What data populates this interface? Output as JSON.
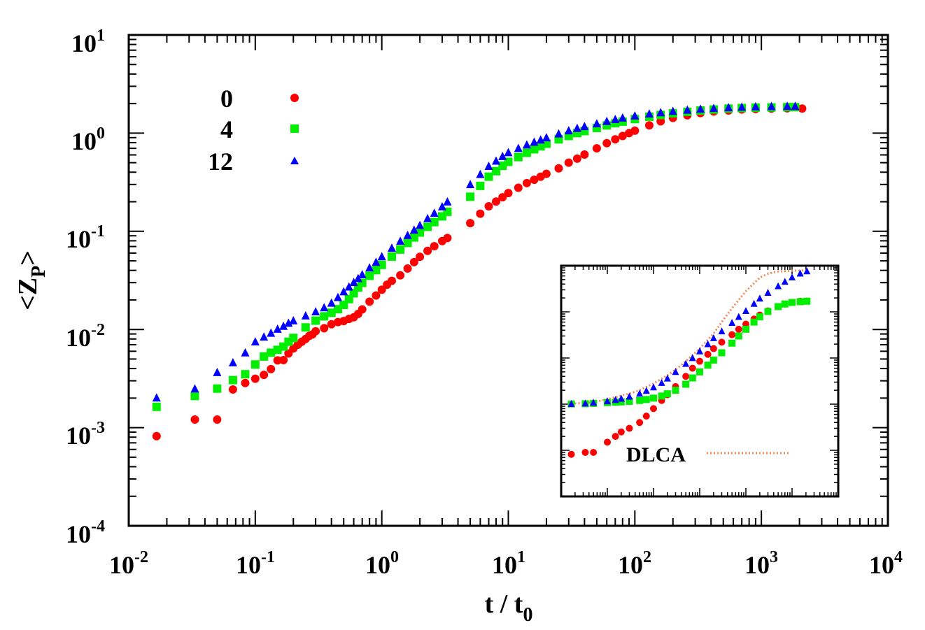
{
  "chart_data": [
    {
      "type": "scatter",
      "name": "main",
      "xscale": "log",
      "yscale": "log",
      "xlim": [
        0.01,
        10000
      ],
      "ylim": [
        0.0001,
        10
      ],
      "xlabel": {
        "base": "t / t",
        "sub": "0"
      },
      "ylabel": {
        "pre": "<Z",
        "sub": "P",
        "post": ">"
      },
      "x_ticks": [
        {
          "base": "10",
          "exp": "-2"
        },
        {
          "base": "10",
          "exp": "-1"
        },
        {
          "base": "10",
          "exp": "0"
        },
        {
          "base": "10",
          "exp": "1"
        },
        {
          "base": "10",
          "exp": "2"
        },
        {
          "base": "10",
          "exp": "3"
        },
        {
          "base": "10",
          "exp": "4"
        }
      ],
      "y_ticks": [
        {
          "base": "10",
          "exp": "-4"
        },
        {
          "base": "10",
          "exp": "-3"
        },
        {
          "base": "10",
          "exp": "-2"
        },
        {
          "base": "10",
          "exp": "-1"
        },
        {
          "base": "10",
          "exp": "0"
        },
        {
          "base": "10",
          "exp": "1"
        }
      ],
      "legend_position": "top-left",
      "series": [
        {
          "name": "0",
          "marker": "circle",
          "color": "#ff0000",
          "x": [
            0.0166,
            0.0333,
            0.05,
            0.0666,
            0.0833,
            0.1,
            0.117,
            0.133,
            0.15,
            0.167,
            0.183,
            0.2,
            0.217,
            0.233,
            0.25,
            0.267,
            0.283,
            0.3,
            0.35,
            0.4,
            0.45,
            0.5,
            0.55,
            0.6,
            0.65,
            0.7,
            0.8,
            0.9,
            1.0,
            1.1,
            1.2,
            1.4,
            1.6,
            1.8,
            2.0,
            2.3,
            2.6,
            3.0,
            3.3,
            5.0,
            6.0,
            7.0,
            8.0,
            9.0,
            10.0,
            12,
            14,
            16,
            18,
            20,
            25,
            30,
            35,
            40,
            50,
            60,
            70,
            80,
            90,
            100,
            130,
            160,
            200,
            260,
            330,
            420,
            550,
            700,
            900,
            1200,
            1600,
            2100
          ],
          "y": [
            0.00082,
            0.00121,
            0.00121,
            0.00245,
            0.00285,
            0.00315,
            0.00345,
            0.00395,
            0.00485,
            0.00488,
            0.0057,
            0.0064,
            0.007,
            0.0075,
            0.008,
            0.0086,
            0.0089,
            0.0096,
            0.0103,
            0.0113,
            0.0119,
            0.0122,
            0.0128,
            0.0133,
            0.0144,
            0.016,
            0.0192,
            0.0222,
            0.0254,
            0.0286,
            0.0313,
            0.0356,
            0.0418,
            0.0485,
            0.055,
            0.0632,
            0.0705,
            0.0795,
            0.0855,
            0.121,
            0.151,
            0.18,
            0.201,
            0.222,
            0.245,
            0.278,
            0.31,
            0.335,
            0.36,
            0.385,
            0.438,
            0.5,
            0.55,
            0.605,
            0.7,
            0.79,
            0.865,
            0.935,
            1.0,
            1.06,
            1.2,
            1.32,
            1.43,
            1.52,
            1.6,
            1.66,
            1.7,
            1.74,
            1.76,
            1.78,
            1.79,
            1.78
          ]
        },
        {
          "name": "4",
          "marker": "square",
          "color": "#00ee00",
          "x": [
            0.0166,
            0.0333,
            0.05,
            0.0666,
            0.0833,
            0.1,
            0.117,
            0.133,
            0.15,
            0.167,
            0.183,
            0.2,
            0.25,
            0.3,
            0.35,
            0.4,
            0.45,
            0.5,
            0.55,
            0.6,
            0.65,
            0.7,
            0.8,
            0.9,
            1.0,
            1.2,
            1.4,
            1.6,
            1.8,
            2.0,
            2.3,
            2.6,
            3.0,
            3.3,
            5.0,
            6.0,
            7.0,
            8.0,
            9.0,
            10.0,
            12,
            14,
            16,
            18,
            20,
            25,
            30,
            35,
            40,
            50,
            60,
            70,
            80,
            100,
            130,
            160,
            200,
            260,
            330,
            420,
            550,
            700,
            900,
            1200,
            1600,
            1850
          ],
          "y": [
            0.00163,
            0.0021,
            0.0025,
            0.00305,
            0.0035,
            0.0044,
            0.0053,
            0.0058,
            0.0062,
            0.0067,
            0.0075,
            0.0082,
            0.0105,
            0.0123,
            0.0136,
            0.0148,
            0.0161,
            0.0178,
            0.0204,
            0.0234,
            0.0268,
            0.0298,
            0.0352,
            0.0402,
            0.0455,
            0.0553,
            0.0652,
            0.0762,
            0.0865,
            0.0972,
            0.111,
            0.124,
            0.142,
            0.158,
            0.225,
            0.29,
            0.36,
            0.41,
            0.465,
            0.51,
            0.57,
            0.63,
            0.685,
            0.735,
            0.78,
            0.865,
            0.935,
            1.0,
            1.05,
            1.13,
            1.2,
            1.26,
            1.31,
            1.39,
            1.47,
            1.53,
            1.59,
            1.65,
            1.7,
            1.74,
            1.78,
            1.8,
            1.82,
            1.83,
            1.84,
            1.84
          ]
        },
        {
          "name": "12",
          "marker": "triangle",
          "color": "#0000ff",
          "x": [
            0.0166,
            0.0333,
            0.05,
            0.0666,
            0.0833,
            0.1,
            0.117,
            0.133,
            0.15,
            0.167,
            0.183,
            0.2,
            0.25,
            0.3,
            0.35,
            0.4,
            0.45,
            0.5,
            0.55,
            0.6,
            0.65,
            0.7,
            0.8,
            0.9,
            1.0,
            1.2,
            1.4,
            1.6,
            1.8,
            2.0,
            2.3,
            2.6,
            3.0,
            3.3,
            5.0,
            6.0,
            7.0,
            8.0,
            9.0,
            10.0,
            12,
            14,
            16,
            18,
            20,
            25,
            30,
            35,
            40,
            50,
            60,
            70,
            80,
            100,
            130,
            160,
            200,
            260,
            330,
            420,
            550,
            700,
            900,
            1200,
            1600,
            1850
          ],
          "y": [
            0.00201,
            0.00249,
            0.00365,
            0.0046,
            0.0058,
            0.0075,
            0.0084,
            0.0092,
            0.0101,
            0.0108,
            0.0116,
            0.0123,
            0.0138,
            0.0152,
            0.0167,
            0.0186,
            0.0212,
            0.0243,
            0.0272,
            0.0302,
            0.0331,
            0.0362,
            0.0425,
            0.0485,
            0.0552,
            0.0675,
            0.0795,
            0.0912,
            0.103,
            0.115,
            0.135,
            0.153,
            0.178,
            0.2,
            0.3,
            0.38,
            0.46,
            0.52,
            0.58,
            0.635,
            0.7,
            0.76,
            0.81,
            0.855,
            0.9,
            0.985,
            1.06,
            1.12,
            1.17,
            1.25,
            1.32,
            1.38,
            1.43,
            1.5,
            1.57,
            1.62,
            1.67,
            1.72,
            1.76,
            1.79,
            1.82,
            1.84,
            1.86,
            1.87,
            1.88,
            1.88
          ]
        }
      ]
    },
    {
      "type": "scatter",
      "name": "inset",
      "xscale": "log",
      "yscale": "log",
      "xlim": [
        0.01,
        10000
      ],
      "ylim": [
        0.0001,
        10
      ],
      "legend_position": "bottom",
      "series": [
        {
          "name": "0",
          "marker": "circle",
          "color": "#ff0000",
          "x": [
            0.0166,
            0.0333,
            0.05,
            0.1,
            0.15,
            0.2,
            0.3,
            0.5,
            0.7,
            1.0,
            1.5,
            2.0,
            3.0,
            5,
            7,
            10,
            15,
            20,
            30,
            50,
            70,
            100,
            150,
            200,
            300,
            500,
            700,
            1000,
            1500,
            2100
          ],
          "y": [
            0.00082,
            0.0009,
            0.0009,
            0.0015,
            0.002,
            0.0025,
            0.003,
            0.004,
            0.0055,
            0.008,
            0.012,
            0.016,
            0.024,
            0.04,
            0.06,
            0.085,
            0.12,
            0.16,
            0.22,
            0.32,
            0.42,
            0.54,
            0.7,
            0.85,
            1.05,
            1.3,
            1.48,
            1.6,
            1.7,
            1.72
          ]
        },
        {
          "name": "4",
          "marker": "square",
          "color": "#00ee00",
          "x": [
            0.0166,
            0.0333,
            0.05,
            0.1,
            0.15,
            0.2,
            0.3,
            0.5,
            0.7,
            1.0,
            1.5,
            2.0,
            3.0,
            5,
            7,
            10,
            15,
            20,
            30,
            50,
            70,
            100,
            150,
            200,
            300,
            500,
            700,
            1000,
            1500,
            2100
          ],
          "y": [
            0.0101,
            0.0102,
            0.0104,
            0.0108,
            0.011,
            0.0112,
            0.0115,
            0.012,
            0.0126,
            0.0135,
            0.015,
            0.0168,
            0.02,
            0.027,
            0.037,
            0.05,
            0.07,
            0.09,
            0.13,
            0.21,
            0.3,
            0.42,
            0.6,
            0.78,
            1.02,
            1.3,
            1.48,
            1.6,
            1.66,
            1.7
          ]
        },
        {
          "name": "12",
          "marker": "triangle",
          "color": "#0000ff",
          "x": [
            0.0166,
            0.0333,
            0.05,
            0.1,
            0.15,
            0.2,
            0.3,
            0.5,
            0.7,
            1.0,
            1.5,
            2.0,
            3.0,
            5,
            7,
            10,
            15,
            20,
            30,
            50,
            70,
            100,
            150,
            200,
            300,
            500,
            700,
            1000,
            1500,
            2100
          ],
          "y": [
            0.0102,
            0.0104,
            0.0108,
            0.0116,
            0.0124,
            0.0132,
            0.0146,
            0.017,
            0.0195,
            0.0232,
            0.029,
            0.036,
            0.05,
            0.075,
            0.1,
            0.14,
            0.2,
            0.27,
            0.38,
            0.58,
            0.78,
            1.05,
            1.5,
            1.95,
            2.6,
            3.6,
            4.5,
            5.6,
            6.8,
            7.6
          ]
        },
        {
          "name": "DLCA",
          "marker": "line",
          "style": "dotted",
          "color": "#f08a5a",
          "x": [
            0.0166,
            0.05,
            0.1,
            0.3,
            0.5,
            1,
            2,
            3,
            5,
            10,
            20,
            30,
            50,
            100,
            200,
            300,
            500,
            1000,
            2000
          ],
          "y": [
            0.0102,
            0.011,
            0.0128,
            0.017,
            0.02,
            0.028,
            0.042,
            0.056,
            0.085,
            0.16,
            0.34,
            0.6,
            1.2,
            2.8,
            5.5,
            6.7,
            7.5,
            7.8,
            7.9
          ]
        }
      ]
    }
  ]
}
